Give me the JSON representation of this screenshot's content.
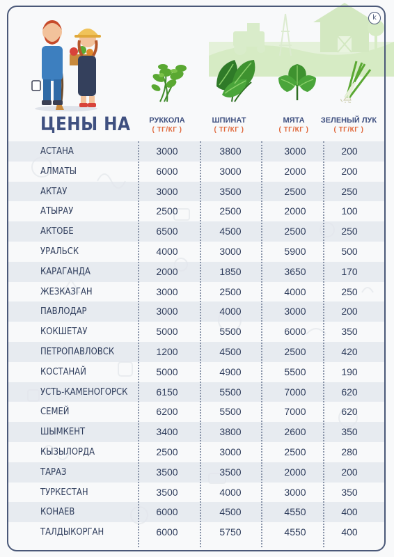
{
  "title": "ЦЕНЫ НА",
  "logo_letter": "k",
  "columns": [
    {
      "name": "РУККОЛА",
      "unit": "( ТГ/КГ )",
      "icon": "arugula-icon"
    },
    {
      "name": "ШПИНАТ",
      "unit": "( ТГ/КГ )",
      "icon": "spinach-icon"
    },
    {
      "name": "МЯТА",
      "unit": "( ТГ/КГ )",
      "icon": "mint-icon"
    },
    {
      "name": "ЗЕЛЕНЫЙ ЛУК",
      "unit": "( ТГ/КГ )",
      "icon": "green-onion-icon"
    }
  ],
  "rows": [
    {
      "city": "АСТАНА",
      "values": [
        "3000",
        "3800",
        "3000",
        "200"
      ]
    },
    {
      "city": "АЛМАТЫ",
      "values": [
        "6000",
        "3000",
        "2000",
        "200"
      ]
    },
    {
      "city": "АКТАУ",
      "values": [
        "3000",
        "3500",
        "2500",
        "250"
      ]
    },
    {
      "city": "АТЫРАУ",
      "values": [
        "2500",
        "2500",
        "2000",
        "100"
      ]
    },
    {
      "city": "АКТОБЕ",
      "values": [
        "6500",
        "4500",
        "2500",
        "250"
      ]
    },
    {
      "city": "УРАЛЬСК",
      "values": [
        "4000",
        "3000",
        "5900",
        "500"
      ]
    },
    {
      "city": "КАРАГАНДА",
      "values": [
        "2000",
        "1850",
        "3650",
        "170"
      ]
    },
    {
      "city": "ЖЕЗКАЗГАН",
      "values": [
        "3000",
        "2500",
        "4000",
        "250"
      ]
    },
    {
      "city": "ПАВЛОДАР",
      "values": [
        "3000",
        "4000",
        "3000",
        "200"
      ]
    },
    {
      "city": "КОКШЕТАУ",
      "values": [
        "5000",
        "5500",
        "6000",
        "350"
      ]
    },
    {
      "city": "ПЕТРОПАВЛОВСК",
      "values": [
        "1200",
        "4500",
        "2500",
        "420"
      ]
    },
    {
      "city": "КОСТАНАЙ",
      "values": [
        "5000",
        "4900",
        "5500",
        "190"
      ]
    },
    {
      "city": "УСТЬ-КАМЕНОГОРСК",
      "values": [
        "6150",
        "5500",
        "7000",
        "620"
      ]
    },
    {
      "city": "СЕМЕЙ",
      "values": [
        "6200",
        "5500",
        "7000",
        "620"
      ]
    },
    {
      "city": "ШЫМКЕНТ",
      "values": [
        "3400",
        "3800",
        "2600",
        "350"
      ]
    },
    {
      "city": "КЫЗЫЛОРДА",
      "values": [
        "2500",
        "3000",
        "2500",
        "280"
      ]
    },
    {
      "city": "ТАРАЗ",
      "values": [
        "3500",
        "3500",
        "2000",
        "200"
      ]
    },
    {
      "city": "ТУРКЕСТАН",
      "values": [
        "3500",
        "4000",
        "3000",
        "350"
      ]
    },
    {
      "city": "КОНАЕВ",
      "values": [
        "6000",
        "4500",
        "4550",
        "400"
      ]
    },
    {
      "city": "ТАЛДЫКОРГАН",
      "values": [
        "6000",
        "5750",
        "4550",
        "400"
      ]
    }
  ],
  "colors": {
    "title": "#3f5080",
    "unit": "#e0673a",
    "text": "#2f3d5c",
    "stripe": "#e2e5ec",
    "frame": "#4a5878",
    "greens": "#5aa832"
  }
}
